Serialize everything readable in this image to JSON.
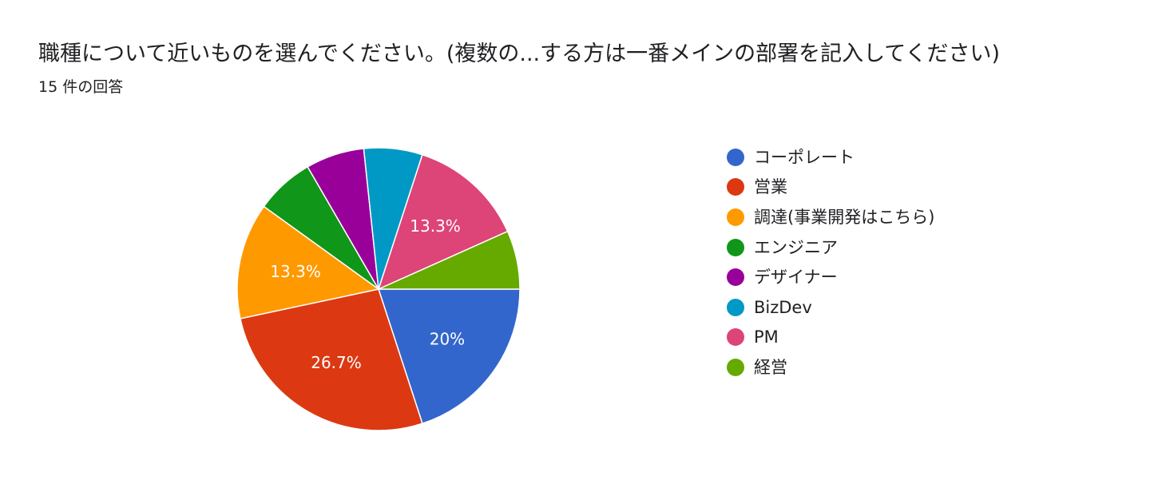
{
  "header": {
    "title": "職種について近いものを選んでください。(複数の...する方は一番メインの部署を記入してください)",
    "response_count": "15 件の回答"
  },
  "chart_data": {
    "type": "pie",
    "start_angle_deg": 90,
    "direction": "clockwise",
    "legend_position": "right",
    "slices": [
      {
        "label": "コーポレート",
        "value": 20.0,
        "display": "20%",
        "color": "#3366cc"
      },
      {
        "label": "営業",
        "value": 26.7,
        "display": "26.7%",
        "color": "#dc3912"
      },
      {
        "label": "調達(事業開発はこちら)",
        "value": 13.3,
        "display": "13.3%",
        "color": "#ff9900"
      },
      {
        "label": "エンジニア",
        "value": 6.7,
        "display": "",
        "color": "#109618"
      },
      {
        "label": "デザイナー",
        "value": 6.7,
        "display": "",
        "color": "#990099"
      },
      {
        "label": "BizDev",
        "value": 6.7,
        "display": "",
        "color": "#0099c6"
      },
      {
        "label": "PM",
        "value": 13.3,
        "display": "13.3%",
        "color": "#dd4477"
      },
      {
        "label": "経営",
        "value": 6.7,
        "display": "",
        "color": "#66aa00"
      }
    ]
  }
}
